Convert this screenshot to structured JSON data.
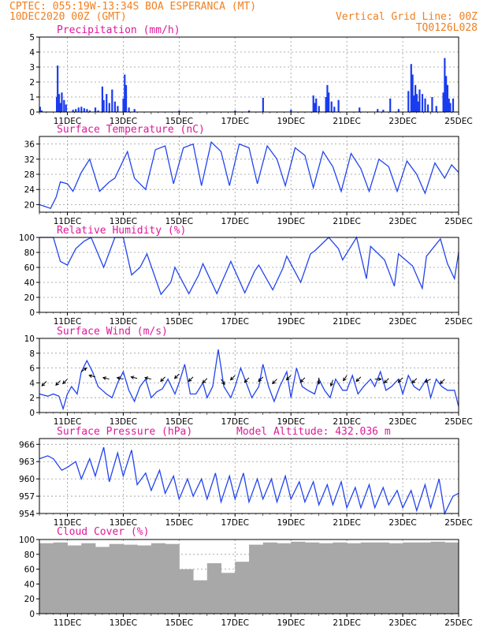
{
  "header": {
    "line1": "CPTEC:   055:19W-13:34S  BOA ESPERANCA (MT)",
    "line2": "10DEC2020 00Z (GMT)",
    "right1": "Vertical Grid Line: 00Z",
    "right2": "TQ0126L028"
  },
  "x_axis": {
    "range": [
      0,
      15
    ],
    "ticks": [
      1,
      3,
      5,
      7,
      9,
      11,
      13,
      15
    ],
    "tick_labels": [
      "11DEC",
      "13DEC",
      "15DEC",
      "17DEC",
      "19DEC",
      "21DEC",
      "23DEC",
      "25DEC"
    ],
    "vertical_grid": "00Z"
  },
  "colors": {
    "header": "#f08020",
    "title": "#e0189a",
    "line": "#2244ee",
    "bar": "#1a3cf0",
    "cloud": "#a8a8a8",
    "wind_arrow": "#000000"
  },
  "chart_data": [
    {
      "type": "bar",
      "title": "Precipitation (mm/h)",
      "ylim": [
        0,
        5
      ],
      "yticks": [
        0,
        1,
        2,
        3,
        4,
        5
      ],
      "grid": true,
      "series": [
        {
          "x": [
            0.02,
            0.08,
            0.62,
            0.65,
            0.7,
            0.75,
            0.8,
            0.88,
            0.95,
            1.2,
            1.3,
            1.4,
            1.5,
            1.6,
            1.7,
            1.8,
            2.0,
            2.1,
            2.25,
            2.3,
            2.4,
            2.5,
            2.6,
            2.7,
            2.8,
            3.0,
            3.05,
            3.1,
            3.2,
            3.4,
            5.0,
            7.0,
            7.5,
            8.0,
            9.0,
            9.8,
            9.85,
            9.9,
            10.0,
            10.25,
            10.3,
            10.35,
            10.45,
            10.55,
            10.7,
            11.45,
            12.1,
            12.3,
            12.55,
            12.85,
            13.2,
            13.3,
            13.35,
            13.4,
            13.45,
            13.5,
            13.55,
            13.6,
            13.7,
            13.8,
            13.9,
            14.05,
            14.2,
            14.45,
            14.5,
            14.55,
            14.6,
            14.65,
            14.7,
            14.8
          ],
          "values": [
            0.35,
            0.1,
            1.0,
            3.1,
            1.2,
            0.6,
            1.3,
            0.8,
            0.5,
            0.15,
            0.2,
            0.3,
            0.35,
            0.25,
            0.2,
            0.1,
            0.3,
            0.1,
            1.7,
            0.8,
            1.2,
            0.6,
            1.5,
            0.7,
            0.4,
            0.9,
            2.5,
            1.8,
            0.3,
            0.2,
            0.1,
            0.1,
            0.1,
            0.95,
            0.15,
            1.1,
            0.6,
            0.9,
            0.4,
            1.0,
            1.8,
            1.3,
            0.7,
            0.35,
            0.8,
            0.3,
            0.2,
            0.15,
            0.9,
            0.2,
            1.4,
            3.2,
            2.5,
            1.1,
            1.8,
            1.2,
            0.7,
            1.5,
            1.2,
            0.9,
            0.5,
            1.0,
            0.4,
            1.3,
            3.6,
            2.4,
            1.8,
            0.9,
            0.6,
            0.9
          ]
        }
      ]
    },
    {
      "type": "line",
      "title": "Surface Temperature (nC)",
      "ylim": [
        18,
        38
      ],
      "yticks": [
        20,
        24,
        28,
        32,
        36
      ],
      "grid": true,
      "series": [
        {
          "x": [
            0,
            0.4,
            0.6,
            0.75,
            1.0,
            1.2,
            1.5,
            1.8,
            2.15,
            2.5,
            2.7,
            3.15,
            3.4,
            3.8,
            4.15,
            4.5,
            4.8,
            5.15,
            5.5,
            5.8,
            6.15,
            6.5,
            6.8,
            7.15,
            7.5,
            7.8,
            8.15,
            8.5,
            8.8,
            9.15,
            9.5,
            9.8,
            10.15,
            10.5,
            10.8,
            11.15,
            11.5,
            11.8,
            12.15,
            12.5,
            12.8,
            13.15,
            13.5,
            13.8,
            14.15,
            14.5,
            14.75,
            15.0
          ],
          "values": [
            20.0,
            19.0,
            22.0,
            26.0,
            25.5,
            23.5,
            28.5,
            32.0,
            23.5,
            26.0,
            27.0,
            34.0,
            27.0,
            24.0,
            34.5,
            35.5,
            25.5,
            35.0,
            36.0,
            25.0,
            36.5,
            34.0,
            25.0,
            36.0,
            35.0,
            25.5,
            35.5,
            32.0,
            25.0,
            35.0,
            33.0,
            24.5,
            34.0,
            30.0,
            23.5,
            33.5,
            29.5,
            23.5,
            32.0,
            30.0,
            23.5,
            31.5,
            28.0,
            23.0,
            31.0,
            27.0,
            30.5,
            28.5
          ]
        }
      ]
    },
    {
      "type": "line",
      "title": "Relative Humidity (%)",
      "ylim": [
        0,
        100
      ],
      "yticks": [
        0,
        20,
        40,
        60,
        80,
        100
      ],
      "grid": true,
      "series": [
        {
          "x": [
            0,
            0.5,
            0.75,
            1.0,
            1.3,
            1.6,
            1.85,
            2.3,
            2.7,
            3.0,
            3.3,
            3.6,
            3.85,
            4.35,
            4.7,
            4.85,
            5.35,
            5.7,
            5.85,
            6.35,
            6.7,
            6.85,
            7.35,
            7.7,
            7.85,
            8.35,
            8.7,
            8.85,
            9.35,
            9.7,
            9.85,
            10.35,
            10.7,
            10.85,
            11.35,
            11.7,
            11.85,
            12.35,
            12.7,
            12.85,
            13.35,
            13.7,
            13.85,
            14.35,
            14.6,
            14.85,
            15.0
          ],
          "values": [
            100,
            100,
            68,
            63,
            85,
            95,
            100,
            60,
            100,
            100,
            50,
            60,
            78,
            24,
            40,
            60,
            25,
            50,
            65,
            25,
            55,
            68,
            26,
            55,
            63,
            30,
            58,
            75,
            40,
            78,
            82,
            100,
            85,
            70,
            100,
            45,
            88,
            70,
            35,
            78,
            62,
            32,
            75,
            98,
            65,
            45,
            80
          ]
        }
      ]
    },
    {
      "type": "line",
      "title": "Surface Wind (m/s)",
      "ylim": [
        0,
        10
      ],
      "yticks": [
        0,
        2,
        4,
        6,
        8,
        10
      ],
      "grid": true,
      "series": [
        {
          "x": [
            0,
            0.3,
            0.5,
            0.7,
            0.85,
            1.0,
            1.15,
            1.35,
            1.5,
            1.7,
            1.9,
            2.1,
            2.4,
            2.6,
            2.8,
            3.0,
            3.2,
            3.4,
            3.6,
            3.8,
            4.0,
            4.2,
            4.4,
            4.6,
            4.85,
            5.0,
            5.2,
            5.4,
            5.6,
            5.85,
            6.0,
            6.2,
            6.4,
            6.6,
            6.85,
            7.0,
            7.2,
            7.4,
            7.6,
            7.85,
            8.0,
            8.2,
            8.4,
            8.6,
            8.85,
            9.0,
            9.2,
            9.4,
            9.6,
            9.85,
            10.0,
            10.2,
            10.4,
            10.6,
            10.85,
            11.0,
            11.2,
            11.4,
            11.6,
            11.85,
            12.0,
            12.2,
            12.4,
            12.6,
            12.85,
            13.0,
            13.2,
            13.4,
            13.6,
            13.85,
            14.0,
            14.2,
            14.4,
            14.6,
            14.85,
            15.0
          ],
          "values": [
            2.5,
            2.2,
            2.5,
            2.2,
            0.5,
            2.5,
            3.5,
            2.5,
            5.5,
            7.0,
            5.5,
            3.5,
            2.5,
            2.0,
            4.0,
            5.5,
            3.0,
            1.5,
            3.5,
            4.5,
            2.0,
            2.8,
            3.2,
            4.5,
            2.5,
            4.0,
            6.5,
            2.5,
            2.5,
            4.0,
            2.0,
            3.5,
            8.5,
            3.5,
            2.0,
            3.5,
            6.0,
            4.0,
            2.0,
            3.5,
            6.5,
            3.5,
            1.5,
            3.5,
            5.5,
            2.0,
            6.0,
            3.5,
            3.0,
            2.5,
            4.5,
            3.0,
            2.0,
            4.5,
            3.0,
            3.0,
            5.0,
            2.5,
            3.5,
            4.5,
            3.5,
            5.5,
            3.0,
            3.5,
            4.5,
            2.5,
            5.0,
            3.5,
            3.0,
            4.5,
            2.0,
            4.5,
            3.5,
            3.0,
            3.0,
            0.8
          ]
        }
      ],
      "arrows": {
        "x": [
          0.25,
          0.75,
          1.0,
          1.5,
          2.0,
          2.5,
          3.0,
          3.5,
          4.0,
          4.5,
          5.0,
          5.5,
          6.0,
          6.5,
          7.0,
          7.5,
          8.0,
          8.5,
          9.0,
          9.5,
          10.0,
          10.5,
          11.0,
          11.5,
          12.0,
          12.5,
          13.0,
          13.5,
          14.0,
          14.5
        ],
        "u": [
          -3,
          -3,
          -3,
          4,
          -4,
          -4,
          -4,
          -4,
          -4,
          -3,
          -3,
          -3,
          -3,
          2,
          -3,
          -3,
          -3,
          -3,
          -3,
          -3,
          0,
          -1,
          -2,
          -3,
          5,
          -3,
          -3,
          -3,
          -4,
          -3
        ],
        "v": [
          -3,
          -3,
          -3,
          3,
          1,
          1,
          1,
          1,
          1,
          -3,
          -3,
          -3,
          -3,
          -3,
          -3,
          -3,
          -3,
          -3,
          -3,
          -3,
          -3,
          -3,
          -3,
          -3,
          0,
          -3,
          -3,
          -3,
          -2,
          -3
        ],
        "y": [
          4.2,
          4.3,
          4.5,
          5.5,
          4.8,
          4.5,
          4.5,
          4.6,
          4.5,
          4.8,
          5.2,
          4.8,
          4.6,
          4.5,
          5.0,
          4.7,
          4.8,
          4.5,
          5.0,
          4.7,
          4.7,
          4.4,
          5.0,
          4.8,
          4.5,
          4.6,
          4.7,
          4.6,
          4.5,
          4.5
        ]
      }
    },
    {
      "type": "line",
      "title": "Surface Pressure (hPa)",
      "annotation": "Model Altitude: 432.036 m",
      "ylim": [
        954,
        967
      ],
      "yticks": [
        954,
        957,
        960,
        963,
        966
      ],
      "grid": true,
      "series": [
        {
          "x": [
            0,
            0.3,
            0.5,
            0.8,
            1.0,
            1.3,
            1.5,
            1.8,
            2.0,
            2.3,
            2.5,
            2.8,
            3.0,
            3.3,
            3.5,
            3.8,
            4.0,
            4.3,
            4.5,
            4.8,
            5.0,
            5.3,
            5.5,
            5.8,
            6.0,
            6.3,
            6.5,
            6.8,
            7.0,
            7.3,
            7.5,
            7.8,
            8.0,
            8.3,
            8.5,
            8.8,
            9.0,
            9.3,
            9.5,
            9.8,
            10.0,
            10.3,
            10.5,
            10.8,
            11.0,
            11.3,
            11.5,
            11.8,
            12.0,
            12.3,
            12.5,
            12.8,
            13.0,
            13.3,
            13.5,
            13.8,
            14.0,
            14.3,
            14.5,
            14.8,
            15.0
          ],
          "values": [
            963.5,
            964.0,
            963.5,
            961.5,
            962.0,
            963.0,
            960.0,
            963.5,
            960.5,
            965.5,
            959.5,
            964.5,
            960.5,
            965.0,
            959.0,
            961.0,
            958.0,
            961.5,
            957.5,
            960.5,
            956.5,
            960.0,
            957.0,
            960.0,
            956.5,
            961.0,
            956.0,
            960.5,
            956.5,
            961.0,
            956.0,
            960.0,
            956.5,
            960.0,
            956.0,
            960.5,
            956.5,
            959.5,
            956.0,
            959.5,
            955.5,
            959.0,
            955.5,
            959.5,
            955.0,
            958.5,
            955.0,
            959.0,
            955.0,
            958.5,
            955.5,
            958.0,
            955.0,
            958.0,
            954.5,
            959.0,
            955.0,
            960.0,
            954.0,
            957.0,
            957.5
          ]
        }
      ]
    },
    {
      "type": "bar",
      "title": "Cloud Cover (%)",
      "ylim": [
        0,
        100
      ],
      "yticks": [
        0,
        20,
        40,
        60,
        80,
        100
      ],
      "grid": true,
      "series": [
        {
          "x": [
            0.25,
            0.75,
            1.25,
            1.75,
            2.25,
            2.75,
            3.25,
            3.75,
            4.25,
            4.75,
            5.25,
            5.75,
            6.25,
            6.75,
            7.25,
            7.75,
            8.25,
            8.75,
            9.25,
            9.75,
            10.25,
            10.75,
            11.25,
            11.75,
            12.25,
            12.75,
            13.25,
            13.75,
            14.25,
            14.75
          ],
          "values": [
            95,
            96,
            92,
            95,
            90,
            94,
            93,
            92,
            95,
            94,
            60,
            45,
            68,
            55,
            70,
            93,
            96,
            95,
            97,
            96,
            95,
            96,
            95,
            96,
            96,
            95,
            96,
            96,
            97,
            96
          ]
        }
      ]
    }
  ]
}
